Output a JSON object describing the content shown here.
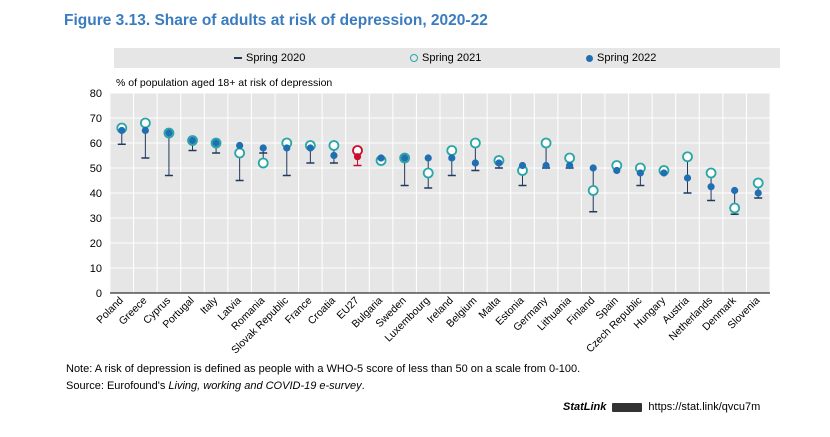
{
  "title": "Figure 3.13. Share of adults at risk of depression, 2020-22",
  "legend": {
    "spring2020": "Spring 2020",
    "spring2021": "Spring 2021",
    "spring2022": "Spring 2022"
  },
  "colors": {
    "title": "#3a7cbf",
    "marker2022": "#1f6fb2",
    "marker2021": "#2aa6a6",
    "marker2020": "#1f3a5c",
    "highlight": "#c8102e",
    "plot_bg": "#e6e6e6",
    "grid": "#ffffff"
  },
  "chart_data": {
    "type": "scatter",
    "title": "Figure 3.13. Share of adults at risk of depression, 2020-22",
    "ylabel": "% of population aged 18+ at risk of depression",
    "xlabel": "",
    "ylim": [
      0,
      80
    ],
    "yticks": [
      "0",
      "10",
      "20",
      "30",
      "40",
      "50",
      "60",
      "70",
      "80"
    ],
    "grid": true,
    "legend_position": "top",
    "highlight_category": "EU27",
    "categories": [
      "Poland",
      "Greece",
      "Cyprus",
      "Portugal",
      "Italy",
      "Latvia",
      "Romania",
      "Slovak Republic",
      "France",
      "Croatia",
      "EU27",
      "Bulgaria",
      "Sweden",
      "Luxembourg",
      "Ireland",
      "Belgium",
      "Malta",
      "Estonia",
      "Germany",
      "Lithuania",
      "Finland",
      "Spain",
      "Czech Republic",
      "Hungary",
      "Austria",
      "Netherlands",
      "Denmark",
      "Slovenia"
    ],
    "series": [
      {
        "name": "Spring 2020",
        "marker": "dash",
        "values": [
          59.5,
          54,
          47,
          57,
          56,
          45,
          56,
          47,
          52,
          52,
          51,
          52,
          43,
          42,
          47,
          49,
          50,
          43,
          50,
          50,
          32.5,
          50,
          43,
          48,
          40,
          37,
          31.5,
          38
        ]
      },
      {
        "name": "Spring 2021",
        "marker": "hollow-circle",
        "values": [
          66,
          68,
          64,
          61,
          60,
          56,
          52,
          60,
          59,
          59,
          57,
          53,
          54,
          48,
          57,
          60,
          53,
          49,
          60,
          54,
          41,
          51,
          50,
          49,
          54.5,
          48,
          34,
          44
        ]
      },
      {
        "name": "Spring 2022",
        "marker": "filled-circle",
        "values": [
          65,
          65,
          64,
          61,
          60,
          59,
          58,
          58,
          58,
          55,
          54.5,
          54,
          54,
          54,
          54,
          52,
          52,
          51,
          51,
          51,
          50,
          49,
          48,
          48,
          46,
          42.5,
          41,
          40
        ]
      }
    ]
  },
  "notes": {
    "line1": "Note: A risk of depression is defined as people with a WHO-5 score of less than 50 on a scale from 0-100.",
    "source_prefix": "Source: Eurofound's ",
    "source_italic": "Living, working and COVID-19 e-survey",
    "source_suffix": "."
  },
  "statlink": {
    "brand": "StatLink",
    "url": "https://stat.link/qvcu7m"
  }
}
